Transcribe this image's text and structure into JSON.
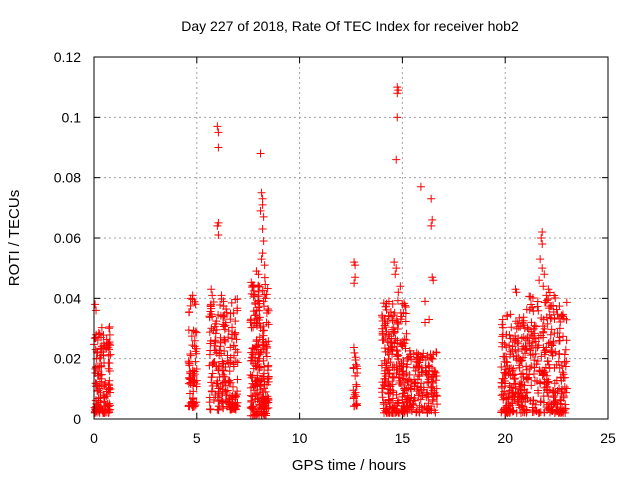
{
  "chart_data": {
    "type": "scatter",
    "title": "Day 227 of 2018, Rate Of TEC Index for receiver hob2",
    "xlabel": "GPS time / hours",
    "ylabel": "ROTI / TECUs",
    "xlim": [
      0,
      25
    ],
    "ylim": [
      0,
      0.12
    ],
    "x_ticks": [
      0,
      5,
      10,
      15,
      20,
      25
    ],
    "x_tick_labels": [
      "0",
      "5",
      "10",
      "15",
      "20",
      "25"
    ],
    "y_ticks": [
      0,
      0.02,
      0.04,
      0.06,
      0.08,
      0.1,
      0.12
    ],
    "y_tick_labels": [
      "0",
      "0.02",
      "0.04",
      "0.06",
      "0.08",
      "0.1",
      "0.12"
    ],
    "grid": true,
    "marker": "+",
    "color": "#ff0000",
    "clusters": [
      {
        "x_range": [
          0.0,
          0.8
        ],
        "y_range": [
          0.002,
          0.031
        ],
        "count": 140
      },
      {
        "x_range": [
          4.6,
          5.0
        ],
        "y_range": [
          0.004,
          0.04
        ],
        "count": 70
      },
      {
        "x_range": [
          5.6,
          7.0
        ],
        "y_range": [
          0.003,
          0.041
        ],
        "count": 200
      },
      {
        "x_range": [
          7.6,
          8.5
        ],
        "y_range": [
          0.001,
          0.047
        ],
        "count": 220
      },
      {
        "x_range": [
          12.6,
          12.8
        ],
        "y_range": [
          0.004,
          0.025
        ],
        "count": 25
      },
      {
        "x_range": [
          14.0,
          15.2
        ],
        "y_range": [
          0.002,
          0.04
        ],
        "count": 220
      },
      {
        "x_range": [
          15.2,
          16.7
        ],
        "y_range": [
          0.002,
          0.023
        ],
        "count": 150
      },
      {
        "x_range": [
          19.8,
          21.0
        ],
        "y_range": [
          0.002,
          0.035
        ],
        "count": 180
      },
      {
        "x_range": [
          21.0,
          23.0
        ],
        "y_range": [
          0.002,
          0.042
        ],
        "count": 260
      }
    ],
    "points": [
      {
        "x": 0.05,
        "y": 0.038
      },
      {
        "x": 0.1,
        "y": 0.036
      },
      {
        "x": 4.7,
        "y": 0.04
      },
      {
        "x": 4.8,
        "y": 0.041
      },
      {
        "x": 5.7,
        "y": 0.043
      },
      {
        "x": 5.75,
        "y": 0.041
      },
      {
        "x": 6.0,
        "y": 0.097
      },
      {
        "x": 6.05,
        "y": 0.095
      },
      {
        "x": 6.05,
        "y": 0.09
      },
      {
        "x": 6.05,
        "y": 0.065
      },
      {
        "x": 6.0,
        "y": 0.064
      },
      {
        "x": 6.05,
        "y": 0.061
      },
      {
        "x": 6.2,
        "y": 0.041
      },
      {
        "x": 6.3,
        "y": 0.039
      },
      {
        "x": 8.1,
        "y": 0.088
      },
      {
        "x": 8.15,
        "y": 0.075
      },
      {
        "x": 8.2,
        "y": 0.073
      },
      {
        "x": 8.2,
        "y": 0.071
      },
      {
        "x": 8.1,
        "y": 0.069
      },
      {
        "x": 8.25,
        "y": 0.067
      },
      {
        "x": 8.2,
        "y": 0.063
      },
      {
        "x": 8.25,
        "y": 0.059
      },
      {
        "x": 8.2,
        "y": 0.055
      },
      {
        "x": 8.15,
        "y": 0.053
      },
      {
        "x": 8.3,
        "y": 0.051
      },
      {
        "x": 7.9,
        "y": 0.049
      },
      {
        "x": 8.0,
        "y": 0.048
      },
      {
        "x": 12.65,
        "y": 0.052
      },
      {
        "x": 12.7,
        "y": 0.051
      },
      {
        "x": 12.7,
        "y": 0.047
      },
      {
        "x": 12.65,
        "y": 0.045
      },
      {
        "x": 14.75,
        "y": 0.11
      },
      {
        "x": 14.8,
        "y": 0.109
      },
      {
        "x": 14.75,
        "y": 0.108
      },
      {
        "x": 14.75,
        "y": 0.1
      },
      {
        "x": 14.7,
        "y": 0.086
      },
      {
        "x": 14.6,
        "y": 0.052
      },
      {
        "x": 14.7,
        "y": 0.05
      },
      {
        "x": 14.65,
        "y": 0.048
      },
      {
        "x": 14.9,
        "y": 0.044
      },
      {
        "x": 14.8,
        "y": 0.042
      },
      {
        "x": 15.9,
        "y": 0.077
      },
      {
        "x": 16.4,
        "y": 0.073
      },
      {
        "x": 16.45,
        "y": 0.066
      },
      {
        "x": 16.4,
        "y": 0.064
      },
      {
        "x": 16.45,
        "y": 0.047
      },
      {
        "x": 16.5,
        "y": 0.046
      },
      {
        "x": 16.1,
        "y": 0.039
      },
      {
        "x": 16.3,
        "y": 0.033
      },
      {
        "x": 16.1,
        "y": 0.032
      },
      {
        "x": 21.8,
        "y": 0.062
      },
      {
        "x": 21.75,
        "y": 0.06
      },
      {
        "x": 21.8,
        "y": 0.058
      },
      {
        "x": 21.7,
        "y": 0.053
      },
      {
        "x": 21.8,
        "y": 0.05
      },
      {
        "x": 21.9,
        "y": 0.048
      },
      {
        "x": 21.65,
        "y": 0.046
      },
      {
        "x": 21.85,
        "y": 0.044
      },
      {
        "x": 20.5,
        "y": 0.043
      },
      {
        "x": 20.55,
        "y": 0.042
      },
      {
        "x": 22.1,
        "y": 0.043
      },
      {
        "x": 22.0,
        "y": 0.041
      }
    ]
  }
}
